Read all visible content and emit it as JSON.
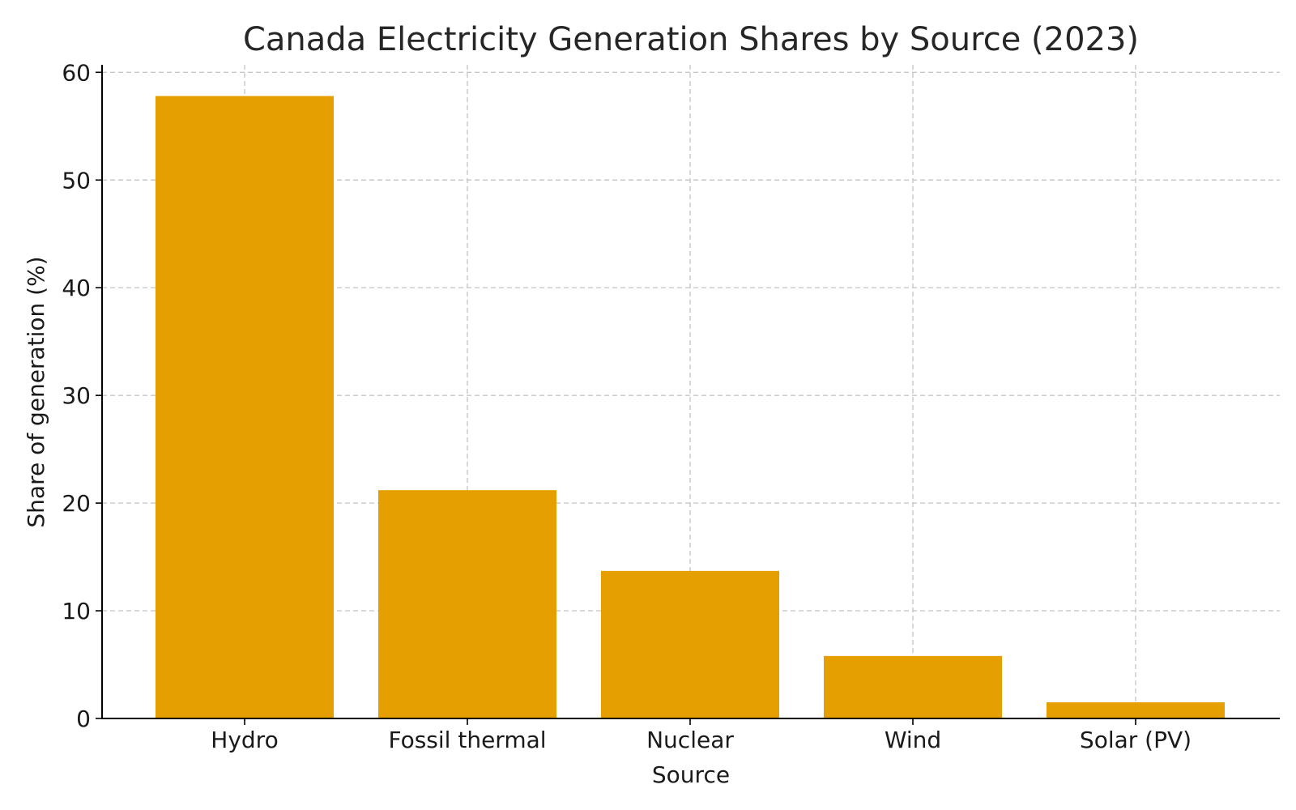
{
  "chart_data": {
    "type": "bar",
    "title": "Canada Electricity Generation Shares by Source (2023)",
    "xlabel": "Source",
    "ylabel": "Share of generation (%)",
    "categories": [
      "Hydro",
      "Fossil thermal",
      "Nuclear",
      "Wind",
      "Solar (PV)"
    ],
    "values": [
      57.8,
      21.2,
      13.7,
      5.8,
      1.5
    ],
    "ylim": [
      0,
      60.7
    ],
    "yticks": [
      0,
      10,
      20,
      30,
      40,
      50,
      60
    ],
    "grid": true,
    "bar_color": "#E69F00"
  }
}
